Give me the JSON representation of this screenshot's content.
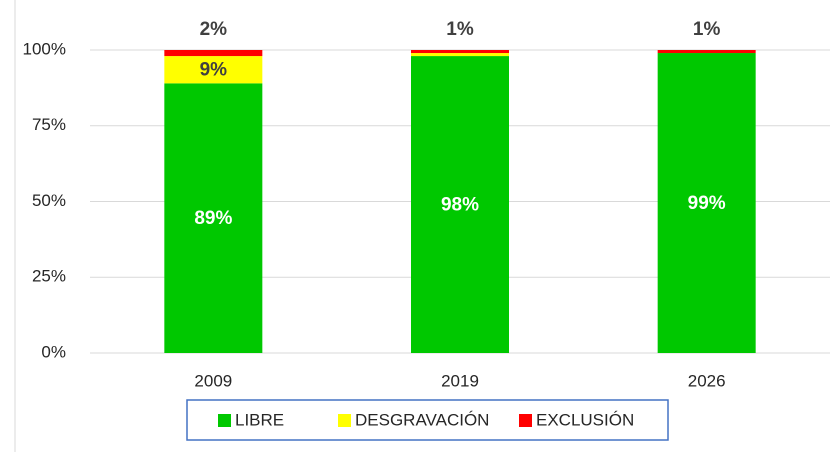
{
  "chart_data": {
    "type": "stacked_bar",
    "categories": [
      "2009",
      "2019",
      "2026"
    ],
    "series": [
      {
        "name": "LIBRE",
        "color": "#00c800",
        "values": [
          89,
          98,
          99
        ],
        "value_labels": [
          "89%",
          "98%",
          "99%"
        ]
      },
      {
        "name": "DESGRAVACIÓN",
        "color": "#ffff00",
        "values": [
          9,
          1,
          0
        ],
        "value_labels": [
          "9%",
          null,
          null
        ]
      },
      {
        "name": "EXCLUSIÓN",
        "color": "#ff0000",
        "values": [
          2,
          1,
          1
        ],
        "value_labels": [
          "2%",
          "1%",
          "1%"
        ]
      }
    ],
    "ylim": [
      0,
      100
    ],
    "yticks": [
      {
        "value": 0,
        "label": "0%"
      },
      {
        "value": 25,
        "label": "25%"
      },
      {
        "value": 50,
        "label": "50%"
      },
      {
        "value": 75,
        "label": "75%"
      },
      {
        "value": 100,
        "label": "100%"
      }
    ],
    "grid": true,
    "legend": "bottom"
  }
}
